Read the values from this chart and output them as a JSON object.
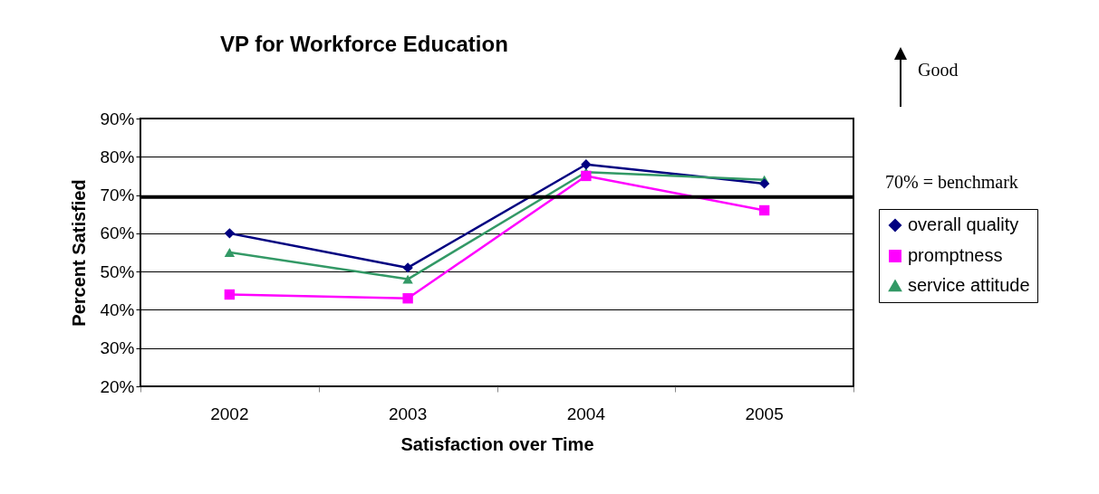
{
  "chart_data": {
    "type": "line",
    "title": "VP for Workforce Education",
    "xlabel": "Satisfaction over Time",
    "ylabel": "Percent Satisfied",
    "categories": [
      "2002",
      "2003",
      "2004",
      "2005"
    ],
    "series": [
      {
        "name": "overall quality",
        "color": "#000080",
        "marker": "diamond",
        "values": [
          60,
          51,
          78,
          73
        ]
      },
      {
        "name": "promptness",
        "color": "#ff00ff",
        "marker": "square",
        "values": [
          44,
          43,
          75,
          66
        ]
      },
      {
        "name": "service attitude",
        "color": "#339966",
        "marker": "triangle",
        "values": [
          55,
          48,
          76,
          74
        ]
      }
    ],
    "ylim": [
      20,
      90
    ],
    "yticks": [
      {
        "value": 20,
        "label": "20%"
      },
      {
        "value": 30,
        "label": "30%"
      },
      {
        "value": 40,
        "label": "40%"
      },
      {
        "value": 50,
        "label": "50%"
      },
      {
        "value": 60,
        "label": "60%"
      },
      {
        "value": 70,
        "label": "70%"
      },
      {
        "value": 80,
        "label": "80%"
      },
      {
        "value": 90,
        "label": "90%"
      }
    ],
    "ref_lines": [
      {
        "axis": "y",
        "value": 69.5,
        "label": "70% = benchmark",
        "color": "#000000"
      }
    ],
    "annotations": [
      "Good"
    ],
    "grid": "y",
    "legend": "right",
    "line_style": "solid"
  }
}
